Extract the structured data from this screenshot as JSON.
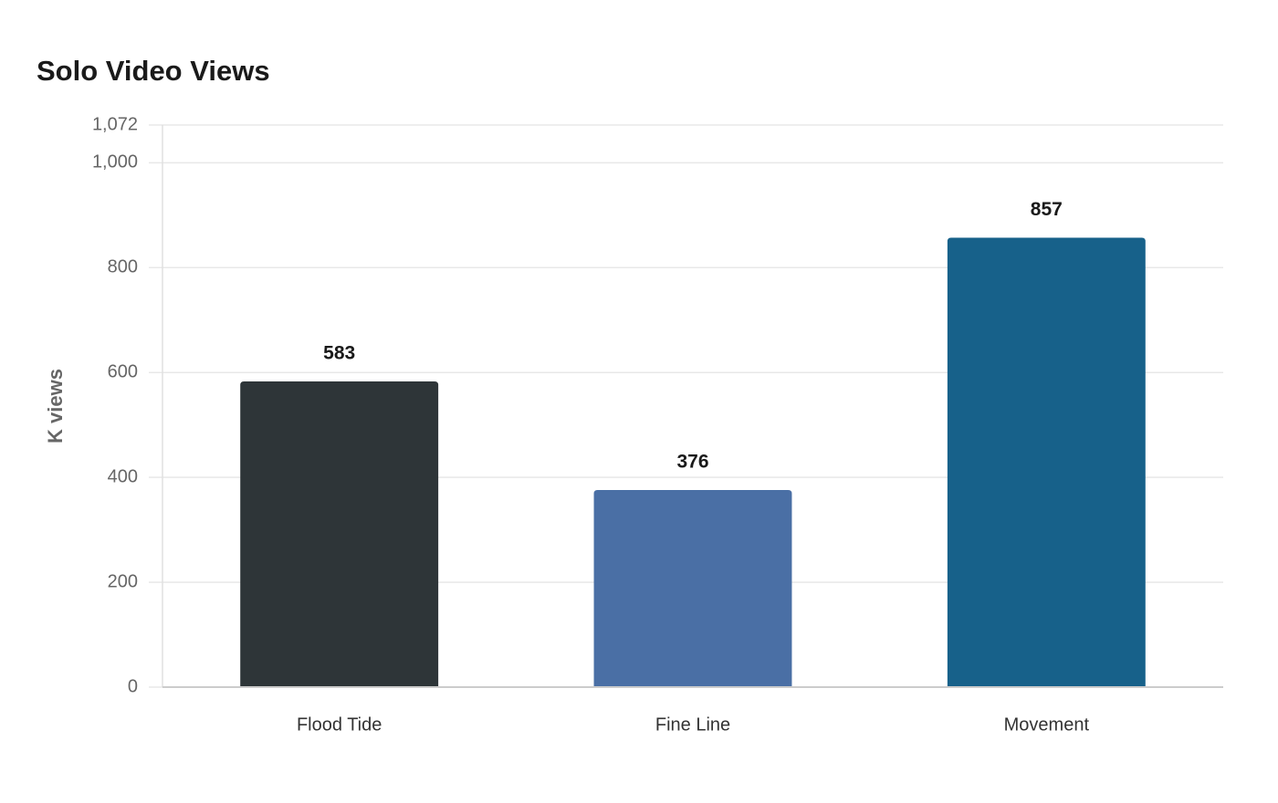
{
  "chart_data": {
    "type": "bar",
    "title": "Solo Video Views",
    "y_label": "K views",
    "categories": [
      "Flood Tide",
      "Fine Line",
      "Movement"
    ],
    "values": [
      583,
      376,
      857
    ],
    "colors": [
      "#2e3538",
      "#4a6fa5",
      "#17618a"
    ],
    "ylim": [
      0,
      1072
    ],
    "yticks": [
      0,
      200,
      400,
      600,
      800,
      {
        "value": 1000,
        "label": "1,000"
      },
      {
        "value": 1072,
        "label": "1,072"
      }
    ],
    "grid": true
  }
}
